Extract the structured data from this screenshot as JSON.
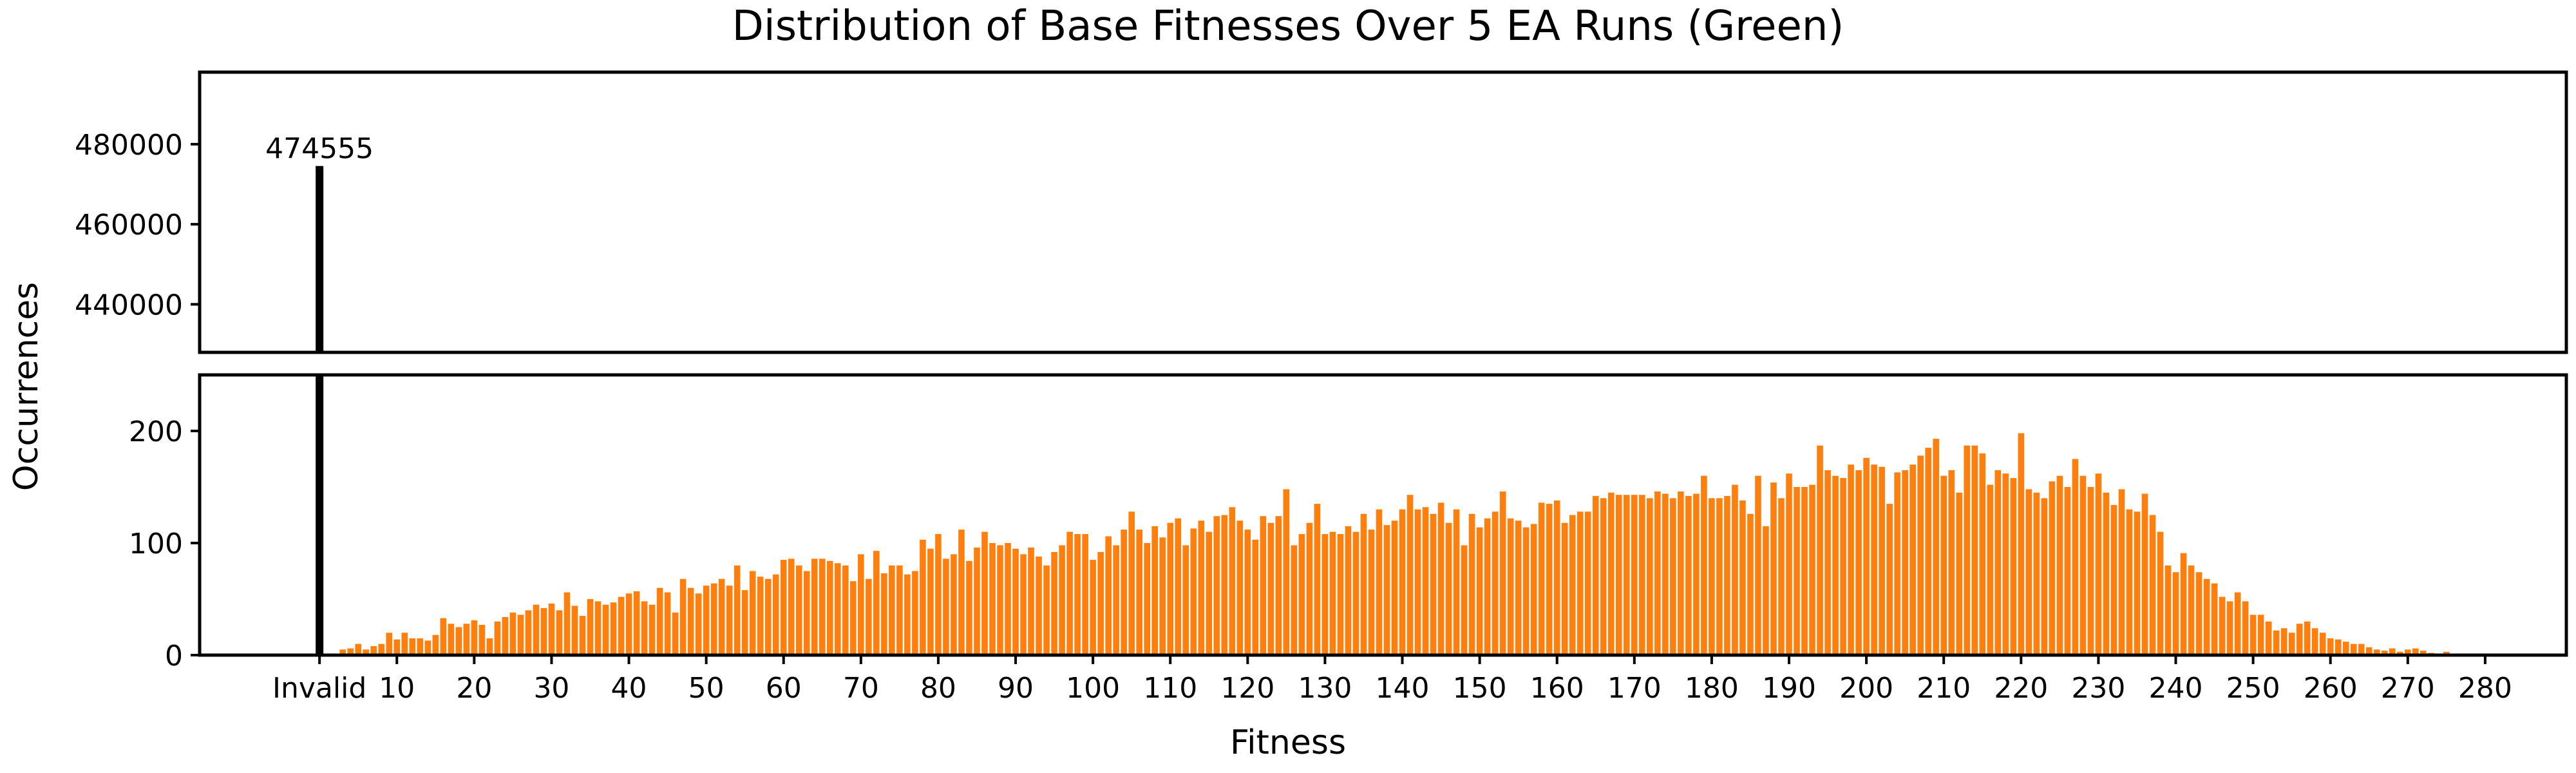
{
  "chart_data": {
    "type": "bar",
    "title": "Distribution of Base Fitnesses Over 5 EA Runs (Green)",
    "xlabel": "Fitness",
    "ylabel": "Occurrences",
    "broken_y_axis": true,
    "upper_panel": {
      "ylim": [
        428000,
        498000
      ],
      "yticks": [
        440000,
        460000,
        480000
      ]
    },
    "lower_panel": {
      "ylim": [
        0,
        250
      ],
      "yticks": [
        0,
        100,
        200
      ]
    },
    "xlim": [
      -15.5,
      290.5
    ],
    "x_ticks": [
      {
        "value": 0,
        "label": "Invalid"
      },
      {
        "value": 10,
        "label": "10"
      },
      {
        "value": 20,
        "label": "20"
      },
      {
        "value": 30,
        "label": "30"
      },
      {
        "value": 40,
        "label": "40"
      },
      {
        "value": 50,
        "label": "50"
      },
      {
        "value": 60,
        "label": "60"
      },
      {
        "value": 70,
        "label": "70"
      },
      {
        "value": 80,
        "label": "80"
      },
      {
        "value": 90,
        "label": "90"
      },
      {
        "value": 100,
        "label": "100"
      },
      {
        "value": 110,
        "label": "110"
      },
      {
        "value": 120,
        "label": "120"
      },
      {
        "value": 130,
        "label": "130"
      },
      {
        "value": 140,
        "label": "140"
      },
      {
        "value": 150,
        "label": "150"
      },
      {
        "value": 160,
        "label": "160"
      },
      {
        "value": 170,
        "label": "170"
      },
      {
        "value": 180,
        "label": "180"
      },
      {
        "value": 190,
        "label": "190"
      },
      {
        "value": 200,
        "label": "200"
      },
      {
        "value": 210,
        "label": "210"
      },
      {
        "value": 220,
        "label": "220"
      },
      {
        "value": 230,
        "label": "230"
      },
      {
        "value": 240,
        "label": "240"
      },
      {
        "value": 250,
        "label": "250"
      },
      {
        "value": 260,
        "label": "260"
      },
      {
        "value": 270,
        "label": "270"
      },
      {
        "value": 280,
        "label": "280"
      }
    ],
    "invalid_bar": {
      "x": 0,
      "label": "Invalid",
      "value": 474555,
      "data_label": "474555",
      "color": "#000000"
    },
    "series": [
      {
        "color": "#ff7f0e",
        "x_start": 3,
        "values": [
          5,
          6,
          10,
          5,
          8,
          10,
          20,
          14,
          20,
          15,
          15,
          13,
          18,
          33,
          28,
          25,
          28,
          31,
          27,
          15,
          30,
          34,
          38,
          36,
          40,
          45,
          42,
          46,
          40,
          56,
          44,
          35,
          50,
          48,
          45,
          47,
          52,
          55,
          57,
          48,
          45,
          60,
          56,
          38,
          68,
          60,
          55,
          62,
          64,
          68,
          62,
          80,
          58,
          75,
          70,
          68,
          72,
          85,
          86,
          80,
          75,
          86,
          86,
          84,
          82,
          80,
          66,
          90,
          68,
          93,
          73,
          80,
          80,
          72,
          75,
          103,
          95,
          108,
          86,
          90,
          112,
          84,
          96,
          110,
          100,
          98,
          100,
          95,
          90,
          96,
          88,
          80,
          92,
          98,
          110,
          108,
          108,
          85,
          92,
          106,
          98,
          112,
          128,
          112,
          100,
          115,
          105,
          118,
          122,
          98,
          113,
          120,
          110,
          124,
          125,
          132,
          120,
          112,
          103,
          124,
          118,
          124,
          148,
          98,
          108,
          118,
          135,
          108,
          110,
          108,
          115,
          110,
          126,
          112,
          130,
          116,
          120,
          130,
          143,
          130,
          132,
          126,
          136,
          118,
          130,
          98,
          126,
          114,
          122,
          128,
          146,
          122,
          120,
          114,
          117,
          136,
          135,
          138,
          118,
          125,
          128,
          128,
          142,
          140,
          145,
          143,
          143,
          143,
          143,
          140,
          146,
          144,
          140,
          146,
          142,
          144,
          160,
          140,
          140,
          142,
          152,
          138,
          126,
          160,
          115,
          154,
          140,
          162,
          150,
          150,
          152,
          187,
          165,
          160,
          158,
          170,
          165,
          176,
          170,
          168,
          135,
          163,
          165,
          170,
          178,
          185,
          193,
          160,
          165,
          145,
          187,
          187,
          180,
          152,
          165,
          162,
          158,
          198,
          148,
          145,
          140,
          155,
          160,
          150,
          175,
          160,
          150,
          162,
          145,
          134,
          148,
          130,
          128,
          144,
          125,
          110,
          80,
          74,
          91,
          80,
          74,
          68,
          64,
          52,
          48,
          56,
          48,
          36,
          36,
          30,
          22,
          24,
          20,
          28,
          30,
          24,
          20,
          15,
          14,
          12,
          10,
          10,
          7,
          5,
          4,
          6,
          3,
          5,
          6,
          4,
          2,
          1,
          3,
          1,
          1,
          1,
          0,
          1,
          1,
          0,
          1,
          0,
          0,
          1,
          0,
          0,
          0,
          0,
          0,
          0,
          0,
          0,
          0,
          0,
          0,
          0,
          0,
          0,
          1,
          0,
          0,
          1,
          0,
          0,
          0,
          0,
          0,
          0
        ]
      }
    ]
  }
}
